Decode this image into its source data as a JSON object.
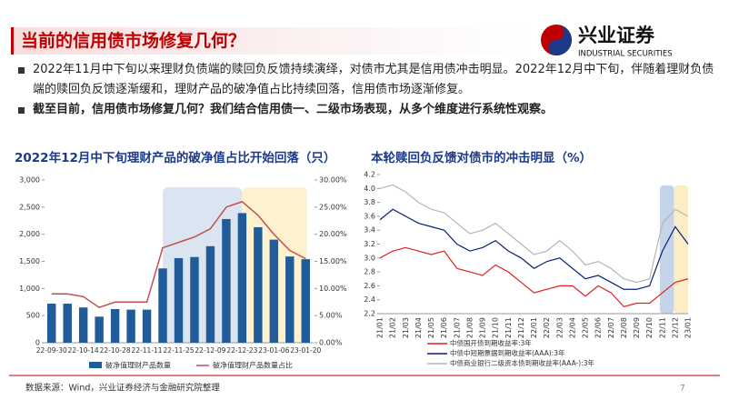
{
  "header": {
    "title": "当前的信用债市场修复几何？",
    "logo_cn": "兴业证券",
    "logo_en": "INDUSTRIAL SECURITIES"
  },
  "bullets": [
    "2022年11月中下旬以来理财负债端的赎回负反馈持续演绎，对债市尤其是信用债冲击明显。2022年12月中下旬，伴随着理财负债端的赎回负反馈逐渐缓和，理财产品的破净值占比持续回落，信用债市场逐渐修复。",
    "截至目前，信用债市场修复几何？我们结合信用债一、二级市场表现，从多个维度进行系统性观察。"
  ],
  "chart_data": [
    {
      "type": "bar",
      "title": "2022年12月中下旬理财产品的破净值占比开始回落（只）",
      "categories": [
        "22-09-30",
        null,
        "22-10-14",
        null,
        "22-10-28",
        null,
        "22-11-11",
        null,
        "22-11-25",
        null,
        "22-12-09",
        null,
        "22-12-23",
        null,
        "23-01-06",
        null,
        "23-01-20"
      ],
      "series": [
        {
          "name": "破净值理财产品数量",
          "type": "bar",
          "color": "#1f5c99",
          "values": [
            720,
            720,
            650,
            480,
            620,
            610,
            610,
            1370,
            1560,
            1580,
            1780,
            2280,
            2390,
            2130,
            1900,
            1590,
            1540
          ]
        },
        {
          "name": "破净值理财产品数量占比",
          "type": "line",
          "axis": "y2",
          "color": "#c0504d",
          "values": [
            9,
            9,
            8.5,
            6.5,
            7.5,
            7.5,
            7.5,
            17.5,
            18.5,
            19.5,
            21,
            25,
            26,
            23.5,
            20,
            17,
            15.5
          ]
        }
      ],
      "ylim": [
        0,
        3000
      ],
      "yticks": [
        0,
        500,
        {
          "value": 1000,
          "label": "1,000"
        },
        {
          "value": 1500,
          "label": "1,500"
        },
        {
          "value": 2000,
          "label": "2,000"
        },
        {
          "value": 2500,
          "label": "2,500"
        },
        {
          "value": 3000,
          "label": "3,000"
        }
      ],
      "y2lim": [
        0,
        30
      ],
      "y2ticks": [
        {
          "value": 0,
          "label": "0.00%"
        },
        {
          "value": 5,
          "label": "5.00%"
        },
        {
          "value": 10,
          "label": "10.00%"
        },
        {
          "value": 15,
          "label": "15.00%"
        },
        {
          "value": 20,
          "label": "20.00%"
        },
        {
          "value": 25,
          "label": "25.00%"
        },
        {
          "value": 30,
          "label": "30.00%"
        }
      ],
      "grid": false
    },
    {
      "type": "line",
      "title": "本轮赎回负反馈对债市的冲击明显（%）",
      "categories": [
        "21/01",
        "21/02",
        "21/03",
        "21/04",
        "21/05",
        "21/06",
        "21/07",
        "21/08",
        "21/09",
        "21/10",
        "21/11",
        "21/12",
        "22/01",
        "22/02",
        "22/03",
        "22/04",
        "22/05",
        "22/06",
        "22/07",
        "22/08",
        "22/09",
        "22/10",
        "22/11",
        "22/12",
        "23/01"
      ],
      "series": [
        {
          "name": "中债国开债到期收益率:3年",
          "color": "#e02020",
          "values": [
            3.0,
            3.1,
            3.15,
            3.1,
            3.05,
            3.1,
            2.85,
            2.8,
            2.75,
            2.9,
            2.8,
            2.65,
            2.5,
            2.55,
            2.6,
            2.6,
            2.45,
            2.6,
            2.5,
            2.3,
            2.35,
            2.35,
            2.5,
            2.65,
            2.7
          ]
        },
        {
          "name": "中债中短期票据到期收益率(AAA):3年",
          "color": "#0a1f7a",
          "values": [
            3.55,
            3.7,
            3.6,
            3.5,
            3.45,
            3.4,
            3.2,
            3.1,
            3.15,
            3.25,
            3.1,
            3.0,
            2.85,
            2.95,
            3.0,
            2.85,
            2.7,
            2.75,
            2.65,
            2.55,
            2.55,
            2.6,
            3.1,
            3.45,
            3.2
          ]
        },
        {
          "name": "中债商业银行二级资本债到期收益率(AAA-):3年",
          "color": "#b5b5b5",
          "values": [
            4.0,
            4.05,
            3.95,
            3.8,
            3.7,
            3.65,
            3.5,
            3.35,
            3.4,
            3.5,
            3.35,
            3.2,
            3.05,
            3.1,
            3.25,
            3.1,
            2.9,
            2.95,
            2.85,
            2.7,
            2.65,
            2.7,
            3.5,
            3.7,
            3.6
          ]
        }
      ],
      "ylim": [
        2.2,
        4.2
      ],
      "yticks": [
        2.2,
        2.4,
        2.6,
        2.8,
        {
          "value": 3,
          "label": "3.0"
        },
        3.2,
        3.4,
        3.6,
        3.8,
        {
          "value": 4,
          "label": "4.0"
        },
        4.2
      ],
      "grid": false
    }
  ],
  "footer": {
    "source": "数据来源：Wind，兴业证券经济与金融研究院整理",
    "page": "7"
  }
}
